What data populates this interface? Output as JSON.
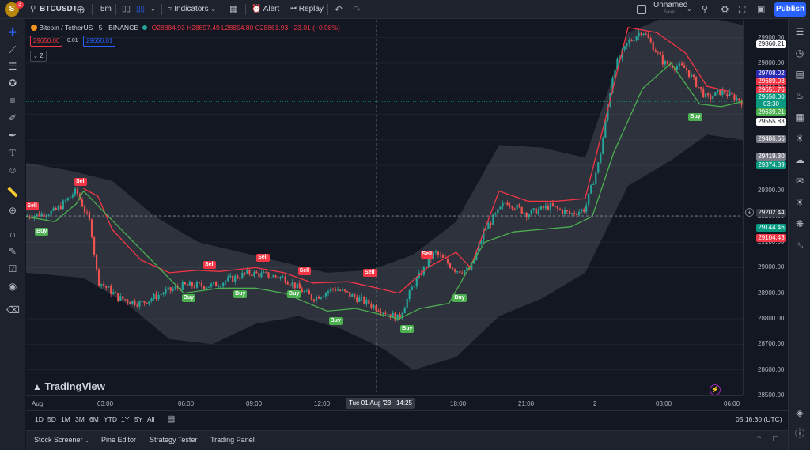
{
  "topbar": {
    "avatar_letter": "S",
    "notification_count": "3",
    "symbol": "BTCUSDT",
    "interval": "5m",
    "indicators_label": "Indicators",
    "alert_label": "Alert",
    "replay_label": "Replay",
    "layout_name": "Unnamed",
    "layout_status": "Save",
    "publish_label": "Publish"
  },
  "legend": {
    "title": "Bitcoin / TetherUS · 5 · BINANCE",
    "open_label": "O",
    "open": "28884.93",
    "high_label": "H",
    "high": "28897.49",
    "low_label": "L",
    "low": "28854.80",
    "close_label": "C",
    "close": "28861.93",
    "change": "−23.01 (−0.08%)",
    "sell_price": "29650.00",
    "spread": "0.01",
    "buy_price": "29650.01",
    "collapse_count": "2"
  },
  "price_axis": {
    "ticks": [
      "29900.00",
      "29800.00",
      "29700.00",
      "29600.00",
      "29500.00",
      "29400.00",
      "29300.00",
      "29200.00",
      "29100.00",
      "29000.00",
      "28900.00",
      "28800.00",
      "28700.00",
      "28600.00",
      "28500.00"
    ],
    "labels": [
      {
        "text": "29860.21",
        "color": "#ffffff",
        "fg": "#131722"
      },
      {
        "text": "29708.02",
        "color": "#2a2bb5",
        "fg": "#ffffff"
      },
      {
        "text": "29689.03",
        "color": "#f23645",
        "fg": "#ffffff"
      },
      {
        "text": "29651.76",
        "color": "#f23645",
        "fg": "#ffffff"
      },
      {
        "text": "29650.00",
        "color": "#089981",
        "fg": "#ffffff"
      },
      {
        "text": "03:30",
        "color": "#089981",
        "fg": "#ffffff"
      },
      {
        "text": "29639.21",
        "color": "#4caf50",
        "fg": "#ffffff"
      },
      {
        "text": "29555.83",
        "color": "#ffffff",
        "fg": "#131722"
      },
      {
        "text": "29486.66",
        "color": "#787b86",
        "fg": "#ffffff"
      },
      {
        "text": "29419.30",
        "color": "#787b86",
        "fg": "#ffffff"
      },
      {
        "text": "29374.89",
        "color": "#089981",
        "fg": "#ffffff"
      },
      {
        "text": "29202.44",
        "color": "#363a45",
        "fg": "#ffffff"
      },
      {
        "text": "29144.46",
        "color": "#089981",
        "fg": "#ffffff"
      },
      {
        "text": "29104.43",
        "color": "#f23645",
        "fg": "#ffffff"
      }
    ]
  },
  "time_axis": {
    "ticks": [
      "Aug",
      "03:00",
      "06:00",
      "09:00",
      "12:00",
      "18:00",
      "21:00",
      "2",
      "03:00",
      "06:00"
    ],
    "crosshair_label": "Tue 01 Aug '23   14:25"
  },
  "range_bar": {
    "ranges": [
      "1D",
      "5D",
      "1M",
      "3M",
      "6M",
      "YTD",
      "1Y",
      "5Y",
      "All"
    ],
    "clock": "05:16:30 (UTC)"
  },
  "bottom_panel": {
    "tabs": [
      "Stock Screener",
      "Pine Editor",
      "Strategy Tester",
      "Trading Panel"
    ]
  },
  "watermark": "TradingView",
  "signals": {
    "buy_label": "Buy",
    "sell_label": "Sell"
  },
  "colors": {
    "up": "#26a69a",
    "down": "#ef5350",
    "resistance": "#f23645",
    "support": "#4caf50",
    "publish": "#2962ff"
  },
  "chart_data": {
    "type": "candlestick",
    "symbol": "BTCUSDT",
    "ylim": [
      28500,
      29970
    ],
    "x_ticks": [
      "Aug",
      "03:00",
      "06:00",
      "09:00",
      "12:00",
      "18:00",
      "21:00",
      "2",
      "03:00",
      "06:00"
    ],
    "close_path": [
      {
        "t": 0,
        "v": 29200
      },
      {
        "t": 0.04,
        "v": 29220
      },
      {
        "t": 0.07,
        "v": 29300
      },
      {
        "t": 0.09,
        "v": 29170
      },
      {
        "t": 0.1,
        "v": 28950
      },
      {
        "t": 0.13,
        "v": 28880
      },
      {
        "t": 0.16,
        "v": 28860
      },
      {
        "t": 0.19,
        "v": 28900
      },
      {
        "t": 0.22,
        "v": 28930
      },
      {
        "t": 0.26,
        "v": 28930
      },
      {
        "t": 0.31,
        "v": 28980
      },
      {
        "t": 0.36,
        "v": 28960
      },
      {
        "t": 0.4,
        "v": 28880
      },
      {
        "t": 0.43,
        "v": 28920
      },
      {
        "t": 0.47,
        "v": 28870
      },
      {
        "t": 0.52,
        "v": 28800
      },
      {
        "t": 0.54,
        "v": 28930
      },
      {
        "t": 0.57,
        "v": 29060
      },
      {
        "t": 0.6,
        "v": 28990
      },
      {
        "t": 0.62,
        "v": 28990
      },
      {
        "t": 0.64,
        "v": 29150
      },
      {
        "t": 0.67,
        "v": 29260
      },
      {
        "t": 0.7,
        "v": 29210
      },
      {
        "t": 0.73,
        "v": 29240
      },
      {
        "t": 0.76,
        "v": 29210
      },
      {
        "t": 0.78,
        "v": 29230
      },
      {
        "t": 0.8,
        "v": 29420
      },
      {
        "t": 0.82,
        "v": 29780
      },
      {
        "t": 0.84,
        "v": 29880
      },
      {
        "t": 0.86,
        "v": 29930
      },
      {
        "t": 0.89,
        "v": 29800
      },
      {
        "t": 0.92,
        "v": 29780
      },
      {
        "t": 0.95,
        "v": 29660
      },
      {
        "t": 0.97,
        "v": 29690
      },
      {
        "t": 1,
        "v": 29650
      }
    ],
    "upper_line": [
      {
        "t": 0.08,
        "v": 29310
      },
      {
        "t": 0.1,
        "v": 29280
      },
      {
        "t": 0.12,
        "v": 29150
      },
      {
        "t": 0.16,
        "v": 29030
      },
      {
        "t": 0.2,
        "v": 28980
      },
      {
        "t": 0.24,
        "v": 28990
      },
      {
        "t": 0.27,
        "v": 28985
      },
      {
        "t": 0.32,
        "v": 29000
      },
      {
        "t": 0.36,
        "v": 28980
      },
      {
        "t": 0.4,
        "v": 28940
      },
      {
        "t": 0.45,
        "v": 28945
      },
      {
        "t": 0.49,
        "v": 28920
      },
      {
        "t": 0.52,
        "v": 28900
      },
      {
        "t": 0.56,
        "v": 29000
      },
      {
        "t": 0.6,
        "v": 29060
      },
      {
        "t": 0.62,
        "v": 29000
      },
      {
        "t": 0.66,
        "v": 29300
      },
      {
        "t": 0.7,
        "v": 29260
      },
      {
        "t": 0.74,
        "v": 29260
      },
      {
        "t": 0.78,
        "v": 29270
      },
      {
        "t": 0.81,
        "v": 29600
      },
      {
        "t": 0.84,
        "v": 29940
      },
      {
        "t": 0.88,
        "v": 29920
      },
      {
        "t": 0.92,
        "v": 29840
      },
      {
        "t": 0.95,
        "v": 29710
      },
      {
        "t": 0.98,
        "v": 29690
      }
    ],
    "lower_line": [
      {
        "t": 0,
        "v": 29200
      },
      {
        "t": 0.04,
        "v": 29180
      },
      {
        "t": 0.07,
        "v": 29250
      },
      {
        "t": 0.08,
        "v": 29300
      },
      {
        "t": 0.22,
        "v": 28900
      },
      {
        "t": 0.27,
        "v": 28920
      },
      {
        "t": 0.32,
        "v": 28920
      },
      {
        "t": 0.36,
        "v": 28900
      },
      {
        "t": 0.42,
        "v": 28830
      },
      {
        "t": 0.46,
        "v": 28840
      },
      {
        "t": 0.52,
        "v": 28800
      },
      {
        "t": 0.55,
        "v": 28840
      },
      {
        "t": 0.59,
        "v": 28860
      },
      {
        "t": 0.61,
        "v": 28960
      },
      {
        "t": 0.64,
        "v": 29100
      },
      {
        "t": 0.68,
        "v": 29140
      },
      {
        "t": 0.72,
        "v": 29150
      },
      {
        "t": 0.76,
        "v": 29160
      },
      {
        "t": 0.79,
        "v": 29200
      },
      {
        "t": 0.82,
        "v": 29450
      },
      {
        "t": 0.86,
        "v": 29700
      },
      {
        "t": 0.9,
        "v": 29800
      },
      {
        "t": 0.94,
        "v": 29640
      },
      {
        "t": 0.97,
        "v": 29630
      },
      {
        "t": 1,
        "v": 29650
      }
    ],
    "upper_band": [
      {
        "t": 0,
        "v": 29410
      },
      {
        "t": 0.06,
        "v": 29380
      },
      {
        "t": 0.12,
        "v": 29340
      },
      {
        "t": 0.18,
        "v": 29200
      },
      {
        "t": 0.24,
        "v": 29100
      },
      {
        "t": 0.3,
        "v": 29060
      },
      {
        "t": 0.36,
        "v": 29020
      },
      {
        "t": 0.42,
        "v": 28980
      },
      {
        "t": 0.48,
        "v": 28990
      },
      {
        "t": 0.54,
        "v": 29050
      },
      {
        "t": 0.6,
        "v": 29180
      },
      {
        "t": 0.66,
        "v": 29480
      },
      {
        "t": 0.72,
        "v": 29470
      },
      {
        "t": 0.78,
        "v": 29430
      },
      {
        "t": 0.84,
        "v": 29920
      },
      {
        "t": 0.9,
        "v": 29990
      },
      {
        "t": 0.95,
        "v": 29980
      },
      {
        "t": 1,
        "v": 29950
      }
    ],
    "lower_band": [
      {
        "t": 0,
        "v": 28980
      },
      {
        "t": 0.08,
        "v": 28960
      },
      {
        "t": 0.14,
        "v": 28860
      },
      {
        "t": 0.2,
        "v": 28720
      },
      {
        "t": 0.26,
        "v": 28700
      },
      {
        "t": 0.32,
        "v": 28780
      },
      {
        "t": 0.38,
        "v": 28810
      },
      {
        "t": 0.44,
        "v": 28760
      },
      {
        "t": 0.5,
        "v": 28680
      },
      {
        "t": 0.54,
        "v": 28600
      },
      {
        "t": 0.6,
        "v": 28650
      },
      {
        "t": 0.66,
        "v": 28810
      },
      {
        "t": 0.72,
        "v": 28880
      },
      {
        "t": 0.78,
        "v": 28980
      },
      {
        "t": 0.84,
        "v": 29320
      },
      {
        "t": 0.9,
        "v": 29420
      },
      {
        "t": 0.95,
        "v": 29520
      },
      {
        "t": 1,
        "v": 29500
      }
    ],
    "signals": [
      {
        "type": "Sell",
        "t": 0.007,
        "v": 29240
      },
      {
        "type": "Buy",
        "t": 0.02,
        "v": 29140
      },
      {
        "type": "Sell",
        "t": 0.075,
        "v": 29335
      },
      {
        "type": "Sell",
        "t": 0.255,
        "v": 29010
      },
      {
        "type": "Buy",
        "t": 0.225,
        "v": 28880
      },
      {
        "type": "Buy",
        "t": 0.297,
        "v": 28895
      },
      {
        "type": "Sell",
        "t": 0.329,
        "v": 29040
      },
      {
        "type": "Sell",
        "t": 0.387,
        "v": 28985
      },
      {
        "type": "Buy",
        "t": 0.372,
        "v": 28895
      },
      {
        "type": "Buy",
        "t": 0.43,
        "v": 28790
      },
      {
        "type": "Sell",
        "t": 0.478,
        "v": 28980
      },
      {
        "type": "Buy",
        "t": 0.53,
        "v": 28760
      },
      {
        "type": "Sell",
        "t": 0.558,
        "v": 29050
      },
      {
        "type": "Buy",
        "t": 0.603,
        "v": 28880
      },
      {
        "type": "Buy",
        "t": 0.932,
        "v": 29590
      }
    ]
  }
}
